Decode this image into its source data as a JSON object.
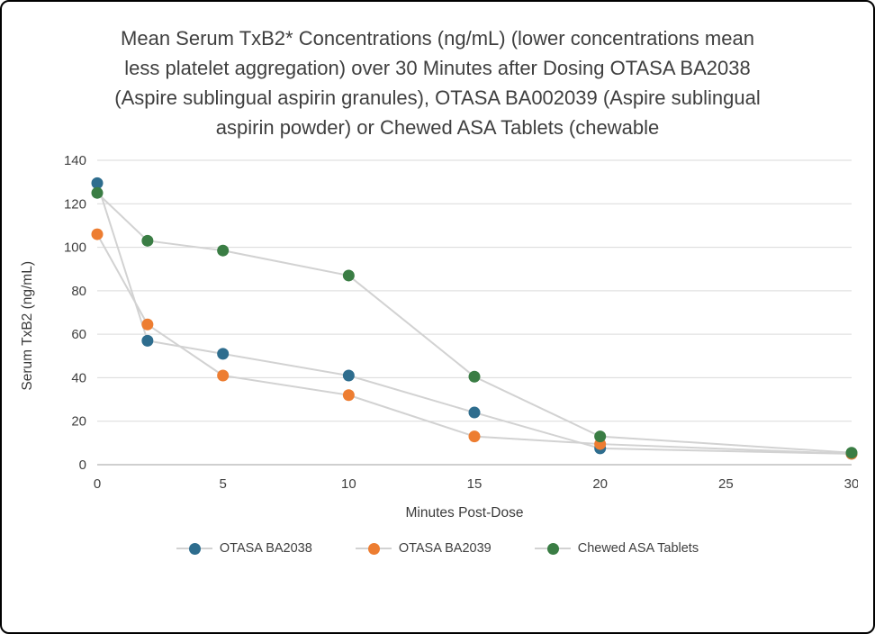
{
  "title": "Mean Serum TxB2* Concentrations (ng/mL) (lower concentrations mean less platelet aggregation) over 30 Minutes after Dosing OTASA BA2038 (Aspire sublingual aspirin granules), OTASA BA002039 (Aspire sublingual aspirin powder) or Chewed ASA Tablets (chewable",
  "chart_data": {
    "type": "line",
    "x": [
      0,
      2,
      5,
      10,
      15,
      20,
      30
    ],
    "series": [
      {
        "name": "OTASA BA2038",
        "color": "#2e6d8e",
        "values": [
          129.5,
          57,
          51,
          41,
          24,
          7.5,
          5
        ]
      },
      {
        "name": "OTASA BA2039",
        "color": "#ed7d31",
        "values": [
          106,
          64.5,
          41,
          32,
          13,
          9.5,
          5
        ]
      },
      {
        "name": "Chewed ASA Tablets",
        "color": "#3a7d44",
        "values": [
          125,
          103,
          98.5,
          87,
          40.5,
          13,
          5.5
        ]
      }
    ],
    "xlabel": "Minutes Post-Dose",
    "ylabel": "Serum TxB2 (ng/mL)",
    "xlim": [
      0,
      30
    ],
    "ylim": [
      0,
      140
    ],
    "xticks": [
      0,
      5,
      10,
      15,
      20,
      25,
      30
    ],
    "ytick_step": 20,
    "grid": true,
    "line_color": "#d2d2d2",
    "axis_text_color": "#404040",
    "legend_position": "bottom"
  }
}
